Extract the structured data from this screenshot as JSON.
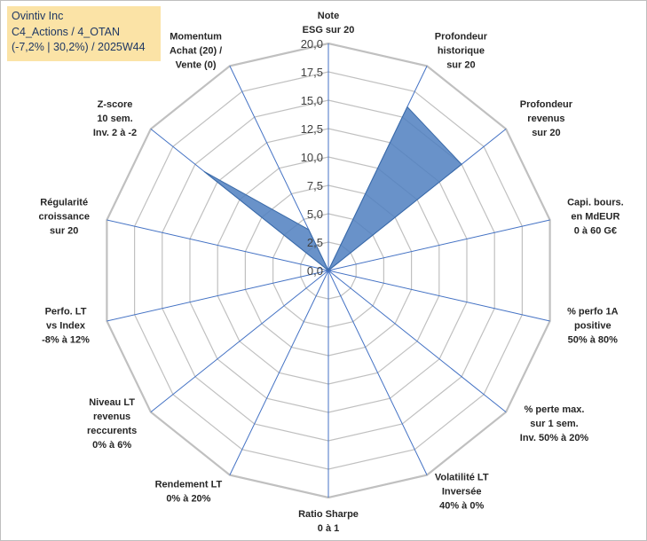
{
  "title": {
    "line1": "Ovintiv Inc",
    "line2": "C4_Actions / 4_OTAN",
    "line3": "(-7,2% | 30,2%) / 2025W44"
  },
  "colors": {
    "fill": "#4f7fbf",
    "stroke": "#3a6aa8",
    "grid": "#c0c0c0",
    "spoke": "#4472c4",
    "title_bg": "#fbe3a6"
  },
  "chart_data": {
    "type": "radar",
    "title": "Ovintiv Inc",
    "rmin": 0,
    "rmax": 20,
    "tick_step": 2.5,
    "ticks": [
      "0,0",
      "2,5",
      "5,0",
      "7,5",
      "10,0",
      "12,5",
      "15,0",
      "17,5",
      "20,0"
    ],
    "axes": [
      [
        "Note",
        "ESG sur 20"
      ],
      [
        "Profondeur",
        "historique",
        "sur 20"
      ],
      [
        "Profondeur",
        "revenus",
        "sur 20"
      ],
      [
        "Capi. bours.",
        "en MdEUR",
        "0 à 60 G€"
      ],
      [
        "% perfo 1A",
        "positive",
        "50% à 80%"
      ],
      [
        "% perte max.",
        "sur 1 sem.",
        "Inv. 50% à 20%"
      ],
      [
        "Volatilité LT",
        "Inversée",
        "40% à 0%"
      ],
      [
        "Ratio Sharpe",
        "0 à 1"
      ],
      [
        "Rendement LT",
        "0% à 20%"
      ],
      [
        "Niveau LT",
        "revenus",
        "reccurents",
        "0% à 6%"
      ],
      [
        "Perfo. LT",
        "vs Index",
        "-8% à 12%"
      ],
      [
        "Régularité",
        "croissance",
        "sur 20"
      ],
      [
        "Z-score",
        "10 sem.",
        "Inv. 2 à -2"
      ],
      [
        "Momentum",
        "Achat (20) /",
        "Vente (0)"
      ]
    ],
    "series": [
      {
        "name": "Ovintiv Inc",
        "values": [
          0,
          16,
          15,
          0,
          0,
          0,
          0,
          0,
          0,
          0,
          0,
          0,
          14,
          4
        ]
      }
    ]
  }
}
